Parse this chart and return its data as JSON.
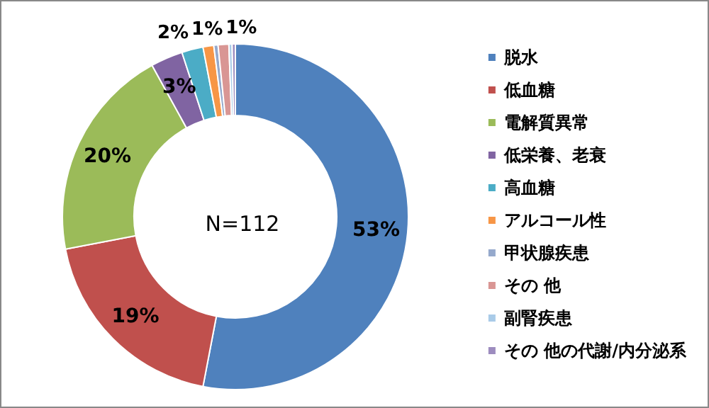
{
  "chart_data": {
    "type": "donut",
    "categories": [
      "脱水",
      "低血糖",
      "電解質異常",
      "低栄養、老衰",
      "高血糖",
      "アルコール性",
      "甲状腺疾患",
      "その 他",
      "副腎疾患",
      "その 他の代謝/内分泌系"
    ],
    "values": [
      53,
      19,
      20,
      3,
      2,
      1,
      0.4,
      1,
      0.3,
      0.3
    ],
    "colors": [
      "#4f81bd",
      "#c0504d",
      "#9bbb59",
      "#8064a2",
      "#4bacc6",
      "#f79646",
      "#95a9cc",
      "#d99694",
      "#a9cbe8",
      "#9d8cbf"
    ],
    "value_labels": [
      "53%",
      "19%",
      "20%",
      "3%",
      "2%",
      "1%",
      null,
      "1%",
      null,
      null
    ],
    "annotations": [
      "N=112"
    ],
    "legend": "right"
  }
}
